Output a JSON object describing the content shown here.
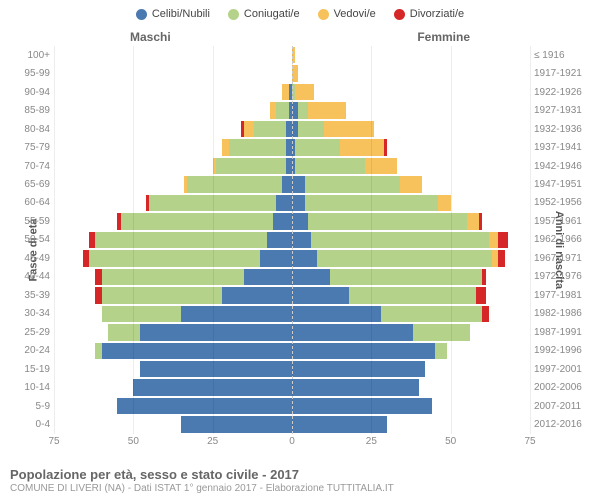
{
  "chart": {
    "type": "population-pyramid",
    "legend": [
      {
        "label": "Celibi/Nubili",
        "color": "#4a7ab0"
      },
      {
        "label": "Coniugati/e",
        "color": "#b5d28b"
      },
      {
        "label": "Vedovi/e",
        "color": "#f7c15c"
      },
      {
        "label": "Divorziati/e",
        "color": "#d62728"
      }
    ],
    "columns": {
      "male": "Maschi",
      "female": "Femmine"
    },
    "y_axis_left_label": "Fasce di età",
    "y_axis_right_label": "Anni di nascita",
    "x_max": 75,
    "x_ticks": [
      75,
      50,
      25,
      0,
      25,
      50,
      75
    ],
    "background_color": "#ffffff",
    "grid_color": "rgba(0,0,0,0.07)",
    "label_fontsize": 10,
    "rows": [
      {
        "age": "100+",
        "birth": "≤ 1916",
        "m": [
          0,
          0,
          0,
          0
        ],
        "f": [
          0,
          0,
          1,
          0
        ]
      },
      {
        "age": "95-99",
        "birth": "1917-1921",
        "m": [
          0,
          0,
          0,
          0
        ],
        "f": [
          0,
          0,
          2,
          0
        ]
      },
      {
        "age": "90-94",
        "birth": "1922-1926",
        "m": [
          1,
          0,
          2,
          0
        ],
        "f": [
          0,
          1,
          6,
          0
        ]
      },
      {
        "age": "85-89",
        "birth": "1927-1931",
        "m": [
          1,
          4,
          2,
          0
        ],
        "f": [
          2,
          3,
          12,
          0
        ]
      },
      {
        "age": "80-84",
        "birth": "1932-1936",
        "m": [
          2,
          10,
          3,
          1
        ],
        "f": [
          2,
          8,
          16,
          0
        ]
      },
      {
        "age": "75-79",
        "birth": "1937-1941",
        "m": [
          2,
          18,
          2,
          0
        ],
        "f": [
          1,
          14,
          14,
          1
        ]
      },
      {
        "age": "70-74",
        "birth": "1942-1946",
        "m": [
          2,
          22,
          1,
          0
        ],
        "f": [
          1,
          22,
          10,
          0
        ]
      },
      {
        "age": "65-69",
        "birth": "1947-1951",
        "m": [
          3,
          30,
          1,
          0
        ],
        "f": [
          4,
          30,
          7,
          0
        ]
      },
      {
        "age": "60-64",
        "birth": "1952-1956",
        "m": [
          5,
          40,
          0,
          1
        ],
        "f": [
          4,
          42,
          4,
          0
        ]
      },
      {
        "age": "55-59",
        "birth": "1957-1961",
        "m": [
          6,
          48,
          0,
          1
        ],
        "f": [
          5,
          50,
          4,
          1
        ]
      },
      {
        "age": "50-54",
        "birth": "1962-1966",
        "m": [
          8,
          54,
          0,
          2
        ],
        "f": [
          6,
          56,
          3,
          3
        ]
      },
      {
        "age": "45-49",
        "birth": "1967-1971",
        "m": [
          10,
          54,
          0,
          2
        ],
        "f": [
          8,
          55,
          2,
          2
        ]
      },
      {
        "age": "40-44",
        "birth": "1972-1976",
        "m": [
          15,
          45,
          0,
          2
        ],
        "f": [
          12,
          48,
          0,
          1
        ]
      },
      {
        "age": "35-39",
        "birth": "1977-1981",
        "m": [
          22,
          38,
          0,
          2
        ],
        "f": [
          18,
          40,
          0,
          3
        ]
      },
      {
        "age": "30-34",
        "birth": "1982-1986",
        "m": [
          35,
          25,
          0,
          0
        ],
        "f": [
          28,
          32,
          0,
          2
        ]
      },
      {
        "age": "25-29",
        "birth": "1987-1991",
        "m": [
          48,
          10,
          0,
          0
        ],
        "f": [
          38,
          18,
          0,
          0
        ]
      },
      {
        "age": "20-24",
        "birth": "1992-1996",
        "m": [
          60,
          2,
          0,
          0
        ],
        "f": [
          45,
          4,
          0,
          0
        ]
      },
      {
        "age": "15-19",
        "birth": "1997-2001",
        "m": [
          48,
          0,
          0,
          0
        ],
        "f": [
          42,
          0,
          0,
          0
        ]
      },
      {
        "age": "10-14",
        "birth": "2002-2006",
        "m": [
          50,
          0,
          0,
          0
        ],
        "f": [
          40,
          0,
          0,
          0
        ]
      },
      {
        "age": "5-9",
        "birth": "2007-2011",
        "m": [
          55,
          0,
          0,
          0
        ],
        "f": [
          44,
          0,
          0,
          0
        ]
      },
      {
        "age": "0-4",
        "birth": "2012-2016",
        "m": [
          35,
          0,
          0,
          0
        ],
        "f": [
          30,
          0,
          0,
          0
        ]
      }
    ]
  },
  "footer": {
    "title": "Popolazione per età, sesso e stato civile - 2017",
    "subtitle": "COMUNE DI LIVERI (NA) - Dati ISTAT 1° gennaio 2017 - Elaborazione TUTTITALIA.IT"
  }
}
